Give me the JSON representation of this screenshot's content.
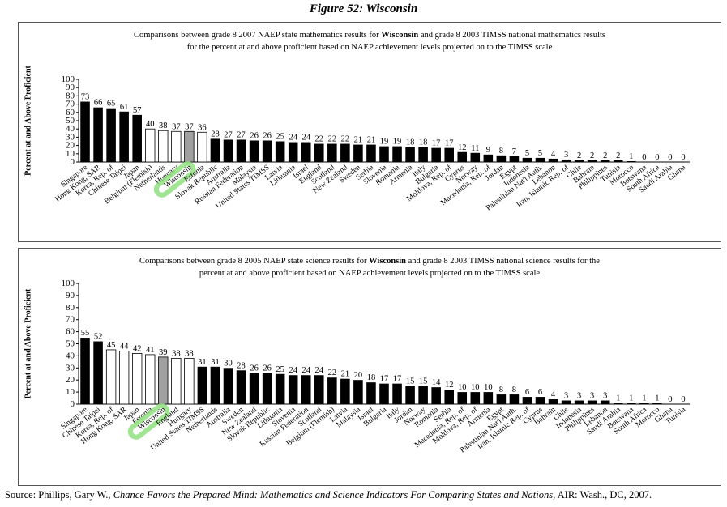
{
  "figure_title": "Figure 52: Wisconsin",
  "source": {
    "prefix": "Source: Phillips, Gary W., ",
    "title": "Chance Favors the Prepared Mind: Mathematics and Science Indicators For Comparing States and Nations",
    "suffix": ", AIR: Wash., DC, 2007."
  },
  "colors": {
    "naep_bar": "#ffffff",
    "highlight_bar": "#a0a0a0",
    "timss_bar": "#000000",
    "label_highlight": "#8fe07f"
  },
  "chart_data": [
    {
      "type": "bar",
      "title_parts": [
        "Comparisons between grade 8 2007 NAEP state mathematics results for ",
        "Wisconsin",
        " and grade 8 2003 TIMSS national mathematics results",
        "for the percent at and above proficient based on NAEP achievement levels projected on to the TIMSS scale"
      ],
      "ylabel": "Percent at and Above Proficient",
      "ylim": [
        0,
        100
      ],
      "yticks": [
        0,
        10,
        20,
        30,
        40,
        50,
        60,
        70,
        80,
        90,
        100
      ],
      "grid": false,
      "highlighted": "Wisconsin",
      "categories": [
        "Singapore",
        "Hong Kong, SAR",
        "Korea, Rep. of",
        "Chinese Taipei",
        "Japan",
        "Belgium (Flemish)",
        "Netherlands",
        "Hungary",
        "Wisconsin",
        "Estonia",
        "Slovak Republic",
        "Australia",
        "Russian Federation",
        "Malaysia",
        "United States TIMSS",
        "Latvia",
        "Lithuania",
        "Israel",
        "England",
        "Scotland",
        "New Zealand",
        "Sweden",
        "Serbia",
        "Slovenia",
        "Romania",
        "Armenia",
        "Italy",
        "Bulgaria",
        "Moldova, Rep. of",
        "Cyprus",
        "Norway",
        "Macedonia, Rep. of",
        "Jordan",
        "Egypt",
        "Indonesia",
        "Palestinian Nat'l Auth.",
        "Lebanon",
        "Iran, Islamic Rep. of",
        "Chile",
        "Bahrain",
        "Philippines",
        "Tunisia",
        "Morocco",
        "Botswana",
        "South Africa",
        "Saudi Arabia",
        "Ghana"
      ],
      "values": [
        73,
        66,
        65,
        61,
        57,
        40,
        38,
        37,
        37,
        36,
        28,
        27,
        27,
        26,
        26,
        25,
        24,
        24,
        22,
        22,
        22,
        21,
        21,
        19,
        19,
        18,
        18,
        17,
        17,
        12,
        11,
        9,
        8,
        7,
        5,
        5,
        4,
        3,
        2,
        2,
        2,
        2,
        1,
        0,
        0,
        0,
        0
      ],
      "bar_kind": [
        "timss",
        "timss",
        "timss",
        "timss",
        "timss",
        "naep",
        "naep",
        "naep",
        "highlight",
        "naep",
        "timss",
        "timss",
        "timss",
        "timss",
        "timss",
        "timss",
        "timss",
        "timss",
        "timss",
        "timss",
        "timss",
        "timss",
        "timss",
        "timss",
        "timss",
        "timss",
        "timss",
        "timss",
        "timss",
        "timss",
        "timss",
        "timss",
        "timss",
        "timss",
        "timss",
        "timss",
        "timss",
        "timss",
        "timss",
        "timss",
        "timss",
        "timss",
        "timss",
        "timss",
        "timss",
        "timss",
        "timss"
      ],
      "value_labels": [
        "73",
        "66",
        "65",
        "61",
        "57",
        "40",
        "38",
        "37",
        "37",
        "36",
        "28",
        "27",
        "27",
        "26",
        "26",
        "25",
        "24",
        "24",
        "22",
        "22",
        "22",
        "21",
        "21",
        "19",
        "19",
        "18",
        "18",
        "17",
        "17",
        "12",
        "11",
        "9",
        "8",
        "7",
        "5",
        "5",
        "4",
        "3",
        "2",
        "2",
        "2",
        "2",
        "1",
        "0",
        "0",
        "0",
        "0"
      ]
    },
    {
      "type": "bar",
      "title_parts": [
        "Comparisons between grade 8 2005 NAEP state science results for ",
        "Wisconsin",
        " and grade 8 2003 TIMSS national science results for the",
        "percent at and above proficient based on NAEP achievement levels projected on to the TIMSS scale"
      ],
      "ylabel": "Percent at and Above Proficient",
      "ylim": [
        0,
        100
      ],
      "yticks": [
        0,
        10,
        20,
        30,
        40,
        50,
        60,
        70,
        80,
        90,
        100
      ],
      "grid": false,
      "highlighted": "Wisconsin",
      "categories": [
        "Singapore",
        "Chinese Taipei",
        "Korea, Rep. of",
        "Hong Kong, SAR",
        "Japan",
        "Estonia",
        "Wisconsin",
        "England",
        "Hungary",
        "United States TIMSS",
        "Netherlands",
        "Australia",
        "Sweden",
        "New Zealand",
        "Slovak Republic",
        "Lithuania",
        "Slovenia",
        "Russian Federation",
        "Scotland",
        "Belgium (Flemish)",
        "Latvia",
        "Malaysia",
        "Israel",
        "Bulgaria",
        "Italy",
        "Jordan",
        "Norway",
        "Romania",
        "Serbia",
        "Macedonia, Rep. of",
        "Moldova, Rep. of",
        "Armenia",
        "Egypt",
        "Palestinian Nat'l Auth.",
        "Iran, Islamic Rep. of",
        "Cyprus",
        "Bahrain",
        "Chile",
        "Indonesia",
        "Philippines",
        "Lebanon",
        "Saudi Arabia",
        "Botswana",
        "South Africa",
        "Morocco",
        "Ghana",
        "Tunisia"
      ],
      "values": [
        55,
        52,
        45,
        44,
        42,
        41,
        39,
        38,
        38,
        31,
        31,
        30,
        28,
        26,
        26,
        25,
        24,
        24,
        24,
        22,
        21,
        20,
        18,
        17,
        17,
        15,
        15,
        14,
        12,
        10,
        10,
        10,
        8,
        8,
        6,
        6,
        4,
        3,
        3,
        3,
        3,
        1,
        1,
        1,
        1,
        0,
        0
      ],
      "bar_kind": [
        "timss",
        "timss",
        "naep",
        "naep",
        "naep",
        "naep",
        "highlight",
        "naep",
        "naep",
        "timss",
        "timss",
        "timss",
        "timss",
        "timss",
        "timss",
        "timss",
        "timss",
        "timss",
        "timss",
        "timss",
        "timss",
        "timss",
        "timss",
        "timss",
        "timss",
        "timss",
        "timss",
        "timss",
        "timss",
        "timss",
        "timss",
        "timss",
        "timss",
        "timss",
        "timss",
        "timss",
        "timss",
        "timss",
        "timss",
        "timss",
        "timss",
        "timss",
        "timss",
        "timss",
        "timss",
        "timss",
        "timss"
      ],
      "value_labels": [
        "55",
        "52",
        "45",
        "44",
        "42",
        "41",
        "39",
        "38",
        "38",
        "31",
        "31",
        "30",
        "28",
        "26",
        "26",
        "25",
        "24",
        "24",
        "24",
        "22",
        "21",
        "20",
        "18",
        "17",
        "17",
        "15",
        "15",
        "14",
        "12",
        "10",
        "10",
        "10",
        "8",
        "8",
        "6",
        "6",
        "4",
        "3",
        "3",
        "3",
        "3",
        "1",
        "1",
        "1",
        "1",
        "0",
        "0"
      ]
    }
  ]
}
